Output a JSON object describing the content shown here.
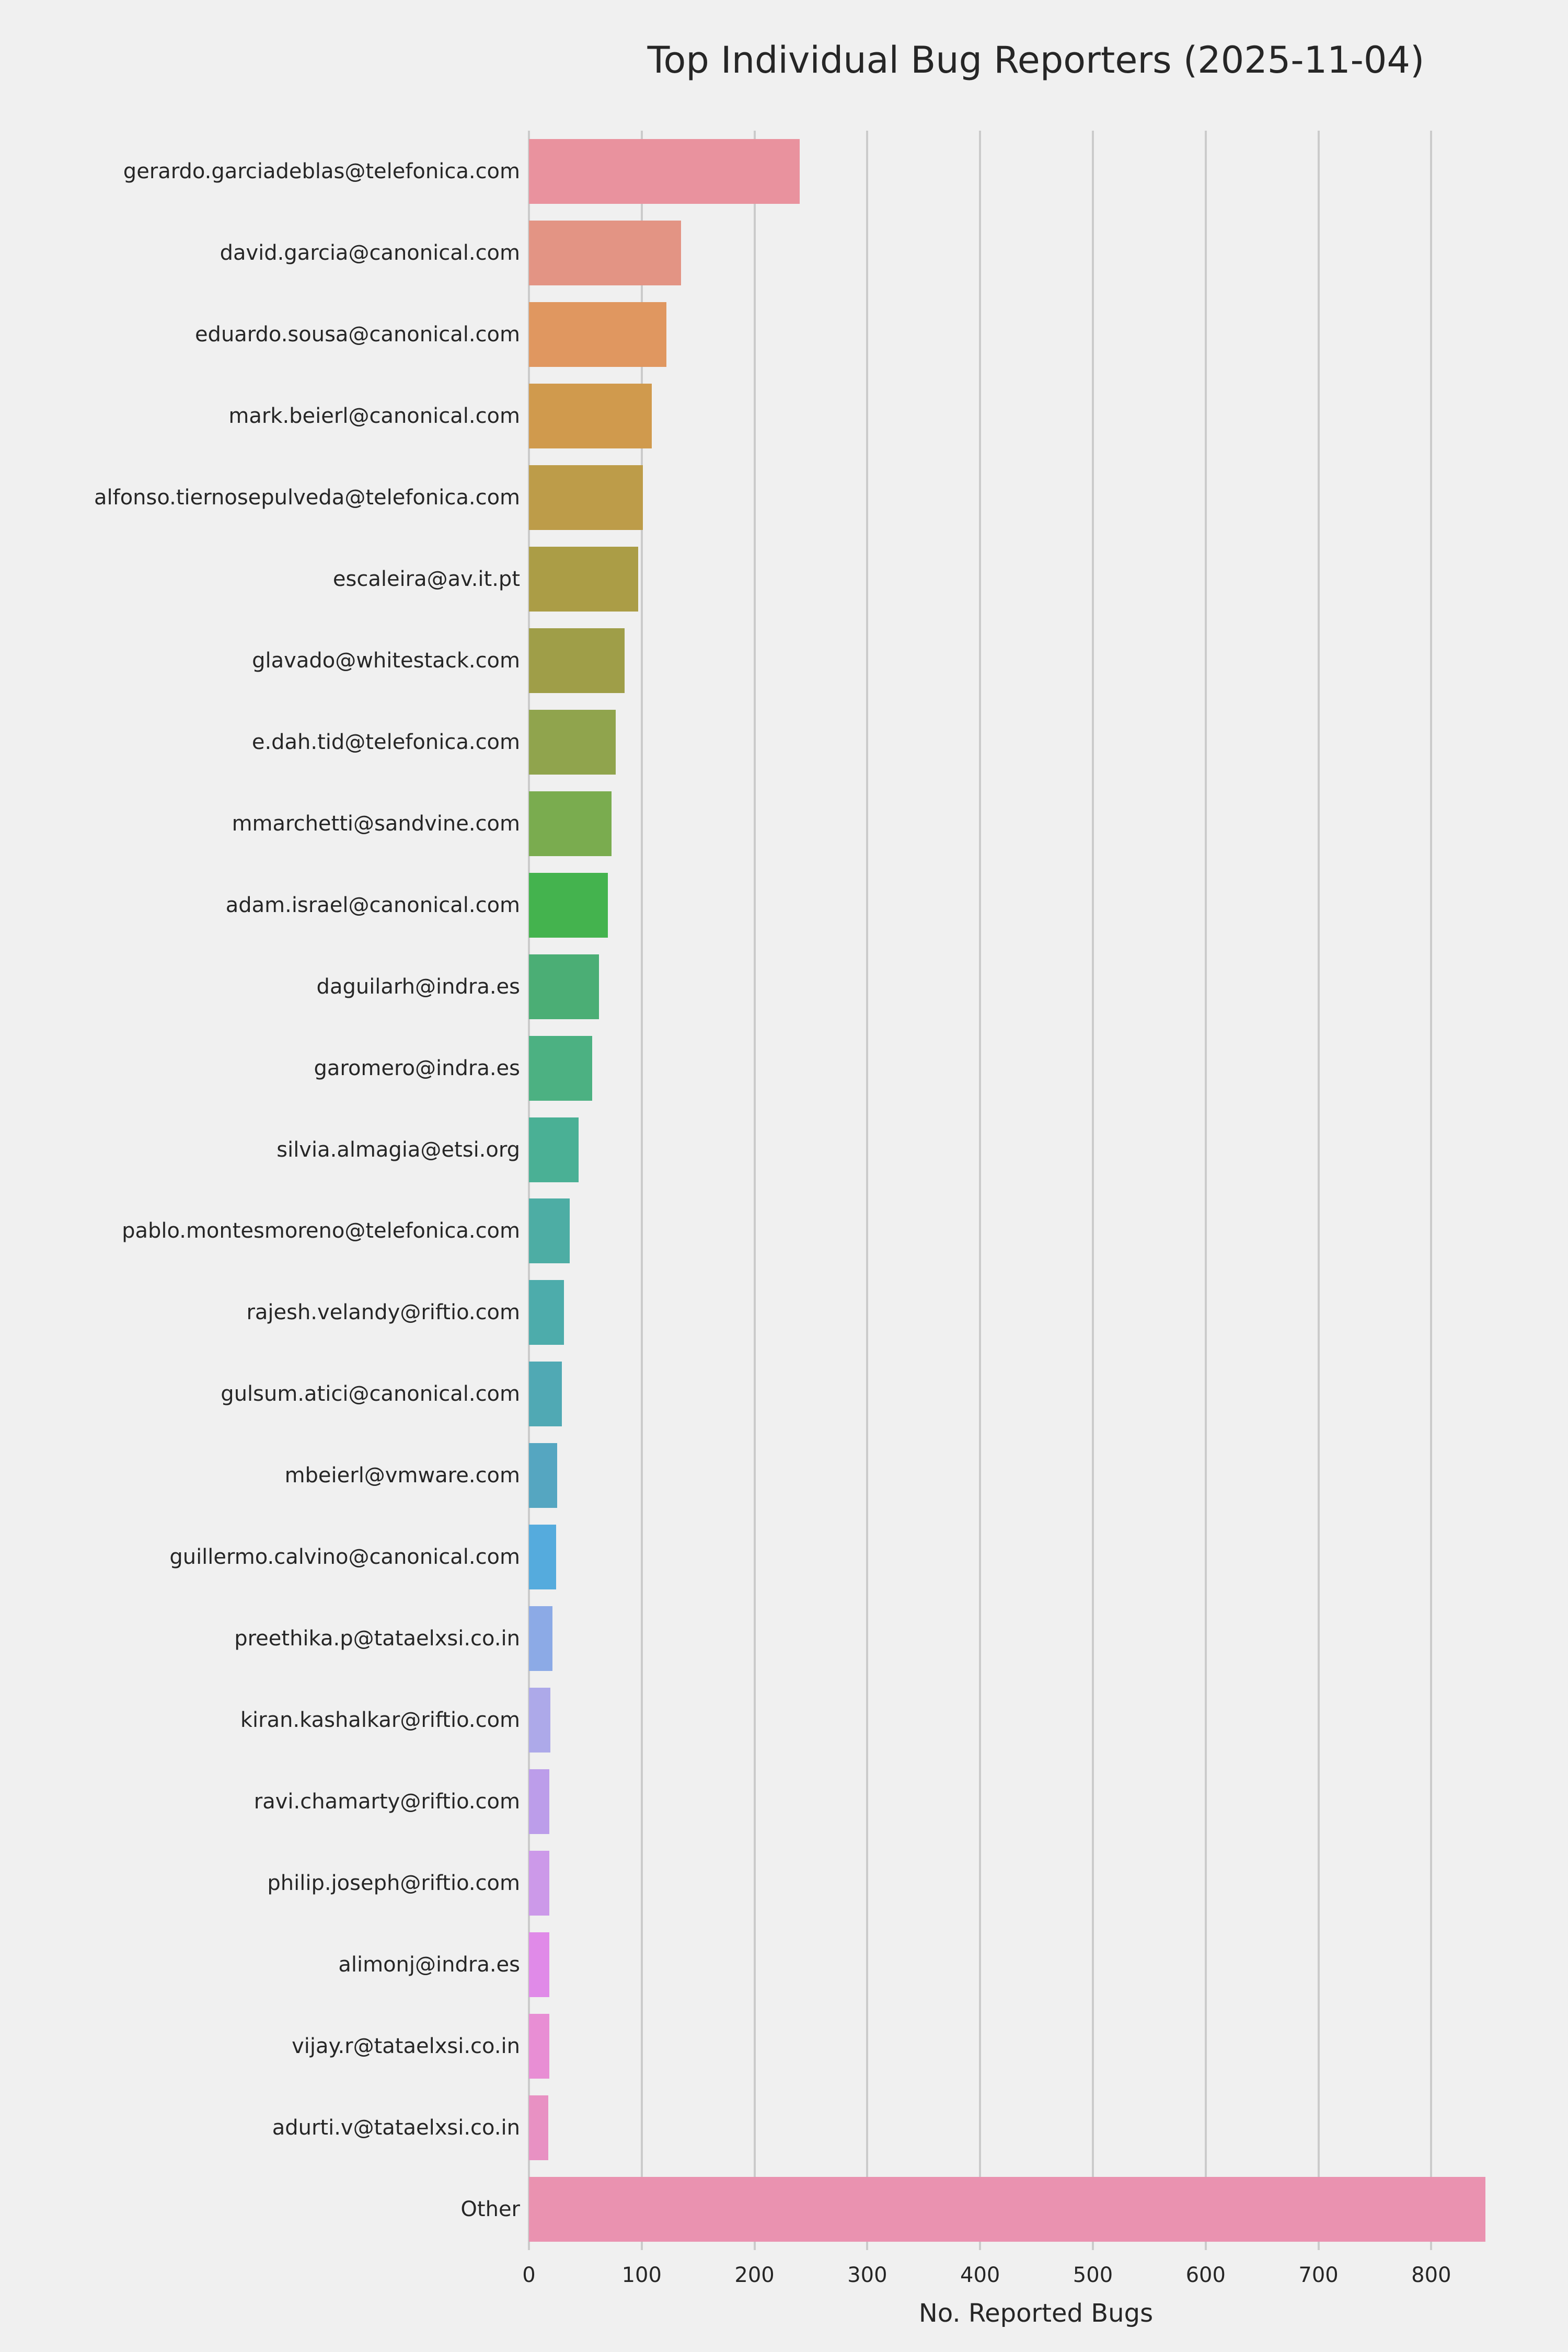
{
  "chart_data": {
    "type": "bar",
    "orientation": "horizontal",
    "title": "Top Individual Bug Reporters (2025-11-04)",
    "xlabel": "No. Reported Bugs",
    "ylabel": "",
    "xlim": [
      0,
      899
    ],
    "xticks": [
      0,
      100,
      200,
      300,
      400,
      500,
      600,
      700,
      800
    ],
    "grid": true,
    "legend": "none",
    "background_color": "#f0f0f0",
    "grid_color": "#cbcbcb",
    "text_color": "#262626",
    "categories": [
      "gerardo.garciadeblas@telefonica.com",
      "david.garcia@canonical.com",
      "eduardo.sousa@canonical.com",
      "mark.beierl@canonical.com",
      "alfonso.tiernosepulveda@telefonica.com",
      "escaleira@av.it.pt",
      "glavado@whitestack.com",
      "e.dah.tid@telefonica.com",
      "mmarchetti@sandvine.com",
      "adam.israel@canonical.com",
      "daguilarh@indra.es",
      "garomero@indra.es",
      "silvia.almagia@etsi.org",
      "pablo.montesmoreno@telefonica.com",
      "rajesh.velandy@riftio.com",
      "gulsum.atici@canonical.com",
      "mbeierl@vmware.com",
      "guillermo.calvino@canonical.com",
      "preethika.p@tataelxsi.co.in",
      "kiran.kashalkar@riftio.com",
      "ravi.chamarty@riftio.com",
      "philip.joseph@riftio.com",
      "alimonj@indra.es",
      "vijay.r@tataelxsi.co.in",
      "adurti.v@tataelxsi.co.in",
      "Other"
    ],
    "values": [
      240,
      135,
      122,
      109,
      101,
      97,
      85,
      77,
      73,
      70,
      62,
      56,
      44,
      36,
      31,
      29,
      25,
      24,
      21,
      19,
      18,
      18,
      18,
      18,
      17,
      848
    ],
    "bar_colors": [
      "#e9929e",
      "#e39484",
      "#e09760",
      "#d09a4d",
      "#bd9c49",
      "#ab9d46",
      "#9f9e48",
      "#90a44d",
      "#7aac4f",
      "#44b34e",
      "#4bae75",
      "#4cb182",
      "#4ab095",
      "#4dada4",
      "#4dacab",
      "#50a9b4",
      "#55a6c1",
      "#55abdd",
      "#8caae6",
      "#ada9e9",
      "#bc9dea",
      "#cc99e9",
      "#e08ae8",
      "#e88ed4",
      "#e891c3",
      "#ea92b0"
    ]
  }
}
